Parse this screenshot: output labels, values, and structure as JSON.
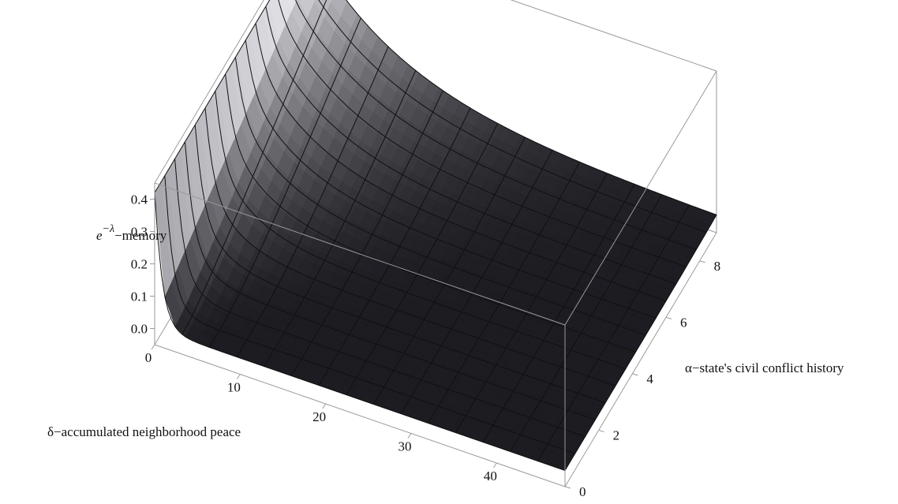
{
  "chart_data": {
    "type": "surface3d",
    "title": "",
    "xlabel": "δ−accumulated neighborhood peace",
    "ylabel": "α−state's civil conflict history",
    "zlabel_base": "e",
    "zlabel_sup": "−λ",
    "zlabel_rest": "−memory",
    "x_range": [
      0,
      48
    ],
    "y_range": [
      0,
      9
    ],
    "z_range": [
      -0.05,
      0.45
    ],
    "x_ticks": [
      "0",
      "10",
      "20",
      "30",
      "40"
    ],
    "y_ticks": [
      "0",
      "2",
      "4",
      "6",
      "8"
    ],
    "z_ticks": [
      "0.0",
      "0.1",
      "0.2",
      "0.3",
      "0.4"
    ],
    "mesh_x_count": 15,
    "mesh_y_count": 15,
    "function": "z ≈ 0.42·exp(−x/1.2) + 0.42·exp(−x/(1+α·1.0))·(α/9) — decays rapidly along δ; slower decay for larger α",
    "shading": "grayscale, bright near high z, dark near zero"
  }
}
